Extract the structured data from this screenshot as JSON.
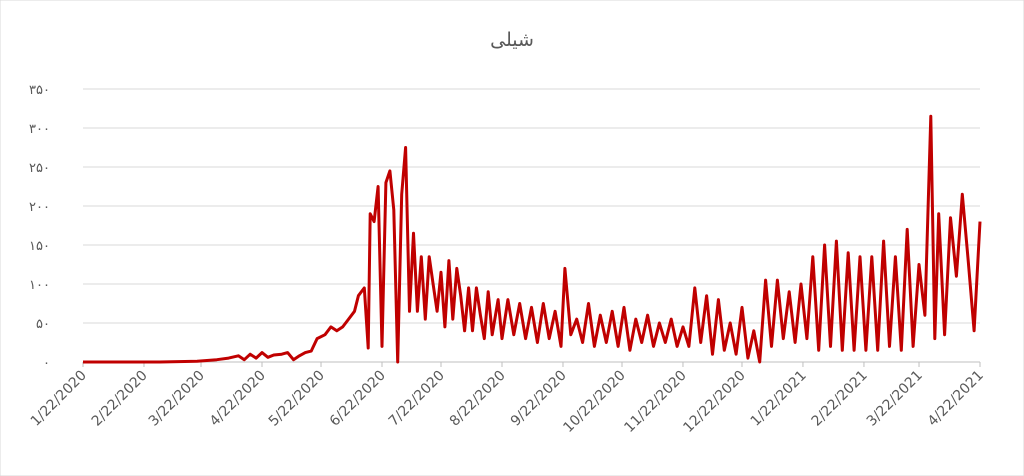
{
  "chart_data": {
    "type": "line",
    "title": "شیلی",
    "color": "#c00000",
    "grid": true,
    "xlim": [
      "1/22/2020",
      "4/22/2021"
    ],
    "xticks": [
      "1/22/2020",
      "2/22/2020",
      "3/22/2020",
      "4/22/2020",
      "5/22/2020",
      "6/22/2020",
      "7/22/2020",
      "8/22/2020",
      "9/22/2020",
      "10/22/2020",
      "11/22/2020",
      "12/22/2020",
      "1/22/2021",
      "2/22/2021",
      "3/22/2021",
      "4/22/2021"
    ],
    "ylim": [
      0,
      350
    ],
    "yticks": [
      {
        "value": 0,
        "label": "۰"
      },
      {
        "value": 50,
        "label": "۵۰"
      },
      {
        "value": 100,
        "label": "۱۰۰"
      },
      {
        "value": 150,
        "label": "۱۵۰"
      },
      {
        "value": 200,
        "label": "۲۰۰"
      },
      {
        "value": 250,
        "label": "۲۵۰"
      },
      {
        "value": 300,
        "label": "۳۰۰"
      },
      {
        "value": 350,
        "label": "۳۵۰"
      }
    ],
    "x": [
      "1/22/2020",
      "3/1/2020",
      "3/20/2020",
      "3/30/2020",
      "4/5/2020",
      "4/10/2020",
      "4/13/2020",
      "4/16/2020",
      "4/19/2020",
      "4/22/2020",
      "4/25/2020",
      "4/28/2020",
      "5/2/2020",
      "5/5/2020",
      "5/8/2020",
      "5/11/2020",
      "5/14/2020",
      "5/17/2020",
      "5/20/2020",
      "5/24/2020",
      "5/27/2020",
      "5/30/2020",
      "6/2/2020",
      "6/5/2020",
      "6/8/2020",
      "6/10/2020",
      "6/13/2020",
      "6/15/2020",
      "6/16/2020",
      "6/18/2020",
      "6/20/2020",
      "6/22/2020",
      "6/24/2020",
      "6/26/2020",
      "6/28/2020",
      "6/30/2020",
      "7/2/2020",
      "7/4/2020",
      "7/6/2020",
      "7/8/2020",
      "7/10/2020",
      "7/12/2020",
      "7/14/2020",
      "7/16/2020",
      "7/18/2020",
      "7/20/2020",
      "7/22/2020",
      "7/24/2020",
      "7/26/2020",
      "7/28/2020",
      "7/30/2020",
      "8/1/2020",
      "8/3/2020",
      "8/5/2020",
      "8/7/2020",
      "8/9/2020",
      "8/11/2020",
      "8/13/2020",
      "8/15/2020",
      "8/17/2020",
      "8/20/2020",
      "8/22/2020",
      "8/25/2020",
      "8/28/2020",
      "8/31/2020",
      "9/3/2020",
      "9/6/2020",
      "9/9/2020",
      "9/12/2020",
      "9/15/2020",
      "9/18/2020",
      "9/21/2020",
      "9/23/2020",
      "9/26/2020",
      "9/29/2020",
      "10/2/2020",
      "10/5/2020",
      "10/8/2020",
      "10/11/2020",
      "10/14/2020",
      "10/17/2020",
      "10/20/2020",
      "10/23/2020",
      "10/26/2020",
      "10/29/2020",
      "11/1/2020",
      "11/4/2020",
      "11/7/2020",
      "11/10/2020",
      "11/13/2020",
      "11/16/2020",
      "11/19/2020",
      "11/22/2020",
      "11/25/2020",
      "11/28/2020",
      "12/1/2020",
      "12/4/2020",
      "12/7/2020",
      "12/10/2020",
      "12/13/2020",
      "12/16/2020",
      "12/19/2020",
      "12/22/2020",
      "12/25/2020",
      "12/28/2020",
      "12/31/2020",
      "1/3/2021",
      "1/6/2021",
      "1/9/2021",
      "1/12/2021",
      "1/15/2021",
      "1/18/2021",
      "1/21/2021",
      "1/24/2021",
      "1/27/2021",
      "1/30/2021",
      "2/2/2021",
      "2/5/2021",
      "2/8/2021",
      "2/11/2021",
      "2/14/2021",
      "2/17/2021",
      "2/20/2021",
      "2/23/2021",
      "2/26/2021",
      "3/1/2021",
      "3/4/2021",
      "3/7/2021",
      "3/10/2021",
      "3/13/2021",
      "3/16/2021",
      "3/19/2021",
      "3/22/2021",
      "3/25/2021",
      "3/28/2021",
      "3/30/2021",
      "4/1/2021",
      "4/4/2021",
      "4/7/2021",
      "4/10/2021",
      "4/13/2021",
      "4/16/2021",
      "4/19/2021",
      "4/22/2021"
    ],
    "values": [
      0,
      0,
      1,
      3,
      5,
      8,
      3,
      10,
      5,
      12,
      6,
      9,
      10,
      12,
      3,
      8,
      12,
      14,
      30,
      35,
      45,
      40,
      45,
      55,
      65,
      85,
      95,
      18,
      190,
      180,
      225,
      20,
      230,
      245,
      195,
      0,
      215,
      275,
      65,
      165,
      65,
      135,
      55,
      135,
      100,
      65,
      115,
      45,
      130,
      55,
      120,
      85,
      40,
      95,
      40,
      95,
      60,
      30,
      90,
      35,
      80,
      30,
      80,
      35,
      75,
      30,
      70,
      25,
      75,
      30,
      65,
      20,
      120,
      35,
      55,
      25,
      75,
      20,
      60,
      25,
      65,
      20,
      70,
      15,
      55,
      25,
      60,
      20,
      50,
      25,
      55,
      20,
      45,
      20,
      95,
      25,
      85,
      10,
      80,
      15,
      50,
      10,
      70,
      5,
      40,
      0,
      105,
      20,
      105,
      30,
      90,
      25,
      100,
      30,
      135,
      15,
      150,
      20,
      155,
      15,
      140,
      15,
      135,
      15,
      135,
      15,
      155,
      20,
      135,
      15,
      170,
      20,
      125,
      60,
      315,
      30,
      190,
      35,
      185,
      110,
      215,
      130,
      40,
      180
    ]
  }
}
